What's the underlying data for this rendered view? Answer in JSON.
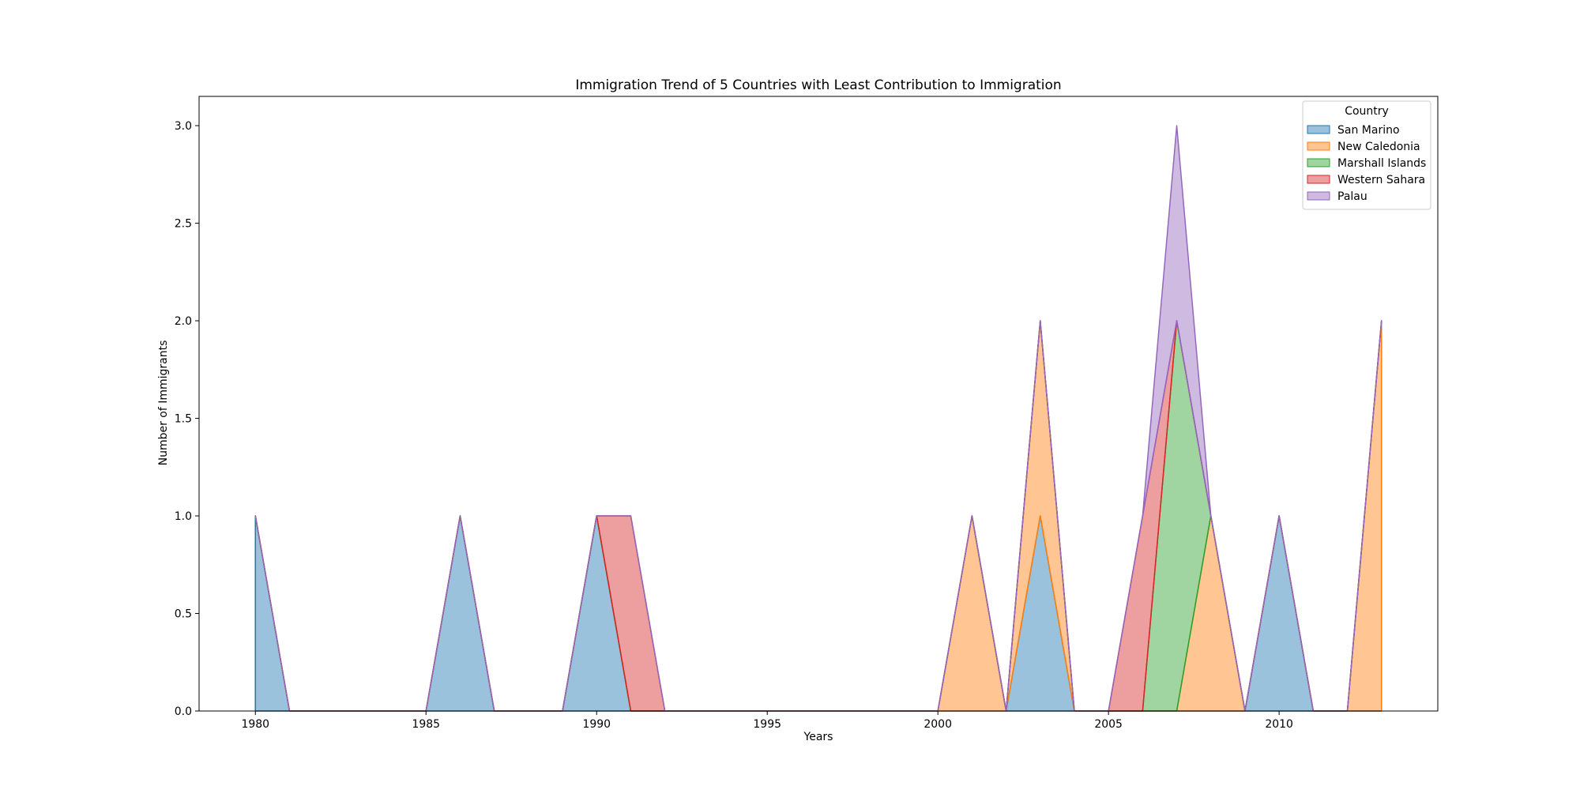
{
  "chart_data": {
    "type": "area",
    "stacked": true,
    "title": "Immigration Trend of 5 Countries with Least Contribution to Immigration",
    "xlabel": "Years",
    "ylabel": "Number of Immigrants",
    "xlim": [
      1978.35,
      2014.65
    ],
    "ylim": [
      0,
      3.15
    ],
    "xticks": [
      1980,
      1985,
      1990,
      1995,
      2000,
      2005,
      2010
    ],
    "yticks": [
      0.0,
      0.5,
      1.0,
      1.5,
      2.0,
      2.5,
      3.0
    ],
    "x": [
      1980,
      1981,
      1982,
      1983,
      1984,
      1985,
      1986,
      1987,
      1988,
      1989,
      1990,
      1991,
      1992,
      1993,
      1994,
      1995,
      1996,
      1997,
      1998,
      1999,
      2000,
      2001,
      2002,
      2003,
      2004,
      2005,
      2006,
      2007,
      2008,
      2009,
      2010,
      2011,
      2012,
      2013
    ],
    "series": [
      {
        "name": "San Marino",
        "color": "#1f77b4",
        "values": [
          1,
          0,
          0,
          0,
          0,
          0,
          1,
          0,
          0,
          0,
          1,
          0,
          0,
          0,
          0,
          0,
          0,
          0,
          0,
          0,
          0,
          0,
          0,
          1,
          0,
          0,
          0,
          0,
          0,
          0,
          1,
          0,
          0,
          0
        ]
      },
      {
        "name": "New Caledonia",
        "color": "#ff7f0e",
        "values": [
          0,
          0,
          0,
          0,
          0,
          0,
          0,
          0,
          0,
          0,
          0,
          0,
          0,
          0,
          0,
          0,
          0,
          0,
          0,
          0,
          0,
          1,
          0,
          1,
          0,
          0,
          0,
          0,
          1,
          0,
          0,
          0,
          0,
          2
        ]
      },
      {
        "name": "Marshall Islands",
        "color": "#2ca02c",
        "values": [
          0,
          0,
          0,
          0,
          0,
          0,
          0,
          0,
          0,
          0,
          0,
          0,
          0,
          0,
          0,
          0,
          0,
          0,
          0,
          0,
          0,
          0,
          0,
          0,
          0,
          0,
          0,
          2,
          0,
          0,
          0,
          0,
          0,
          0
        ]
      },
      {
        "name": "Western Sahara",
        "color": "#d62728",
        "values": [
          0,
          0,
          0,
          0,
          0,
          0,
          0,
          0,
          0,
          0,
          0,
          1,
          0,
          0,
          0,
          0,
          0,
          0,
          0,
          0,
          0,
          0,
          0,
          0,
          0,
          0,
          1,
          0,
          0,
          0,
          0,
          0,
          0,
          0
        ]
      },
      {
        "name": "Palau",
        "color": "#9467bd",
        "values": [
          0,
          0,
          0,
          0,
          0,
          0,
          0,
          0,
          0,
          0,
          0,
          0,
          0,
          0,
          0,
          0,
          0,
          0,
          0,
          0,
          0,
          0,
          0,
          0,
          0,
          0,
          0,
          1,
          0,
          0,
          0,
          0,
          0,
          0
        ]
      }
    ],
    "legend": {
      "title": "Country",
      "position": "top-right"
    },
    "fill_alpha": 0.45,
    "grid": false
  }
}
